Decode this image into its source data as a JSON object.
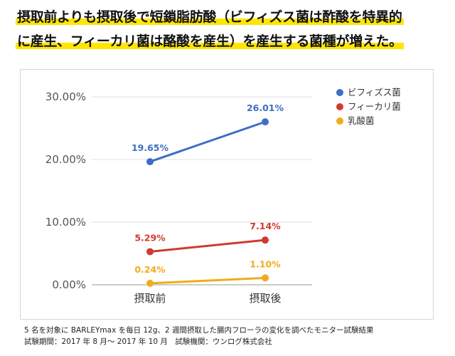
{
  "headline": {
    "line1": "摂取前よりも摂取後で短鎖脂肪酸（ビフィズス菌は酢酸を特異的",
    "line2": "に産生、フィーカリ菌は酪酸を産生）を産生する菌種が増えた。"
  },
  "colors": {
    "highlight": "#ffe600",
    "bifido": "#3d6fc4",
    "faecali": "#d03a2f",
    "lactic": "#f0ac1a",
    "grid": "#e0e0e0",
    "axis_text": "#555555"
  },
  "chart_data": {
    "type": "line",
    "title": "",
    "xlabel": "",
    "ylabel": "",
    "categories": [
      "摂取前",
      "摂取後"
    ],
    "ylim": [
      0,
      30
    ],
    "yticks": [
      0,
      10,
      20,
      30
    ],
    "ytick_labels": [
      "0.00%",
      "10.00%",
      "20.00%",
      "30.00%"
    ],
    "grid": true,
    "legend_position": "top-right",
    "series": [
      {
        "name": "ビフィズス菌",
        "values": [
          19.65,
          26.01
        ],
        "labels": [
          "19.65%",
          "26.01%"
        ],
        "color": "#3d6fc4"
      },
      {
        "name": "フィーカリ菌",
        "values": [
          5.29,
          7.14
        ],
        "labels": [
          "5.29%",
          "7.14%"
        ],
        "color": "#d03a2f"
      },
      {
        "name": "乳酸菌",
        "values": [
          0.24,
          1.1
        ],
        "labels": [
          "0.24%",
          "1.10%"
        ],
        "color": "#f0ac1a"
      }
    ]
  },
  "footnote": {
    "line1": "5 名を対象に BARLEYmax を毎日 12g、2 週間摂取した腸内フローラの変化を調べたモニター試験結果",
    "line2": "試験期間：2017 年 8 月～ 2017 年 10 月　試験機関：ウンログ株式会社"
  }
}
